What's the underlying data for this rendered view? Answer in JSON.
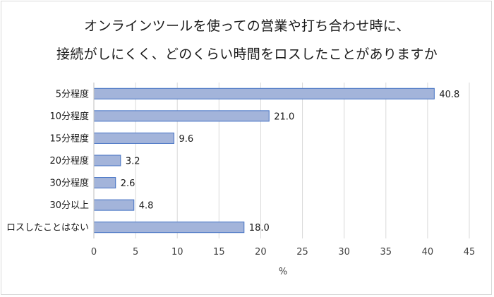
{
  "chart_data": {
    "type": "bar",
    "orientation": "horizontal",
    "title_lines": [
      "オンラインツールを使っての営業や打ち合わせ時に、",
      "接続がしにくく、どのくらい時間をロスしたことがありますか"
    ],
    "categories": [
      "5分程度",
      "10分程度",
      "15分程度",
      "20分程度",
      "30分程度",
      "30分以上",
      "ロスしたことはない"
    ],
    "values": [
      40.8,
      21.0,
      9.6,
      3.2,
      2.6,
      4.8,
      18.0
    ],
    "value_labels": [
      "40.8",
      "21.0",
      "9.6",
      "3.2",
      "2.6",
      "4.8",
      "18.0"
    ],
    "xlabel": "%",
    "ylabel": "",
    "xlim": [
      0,
      45
    ],
    "xticks": [
      0,
      5,
      10,
      15,
      20,
      25,
      30,
      35,
      40,
      45
    ],
    "grid": "vertical",
    "colors": {
      "bar_fill": "#a3b4da",
      "bar_stroke": "#4472c4",
      "grid": "#d9d9d9"
    }
  }
}
